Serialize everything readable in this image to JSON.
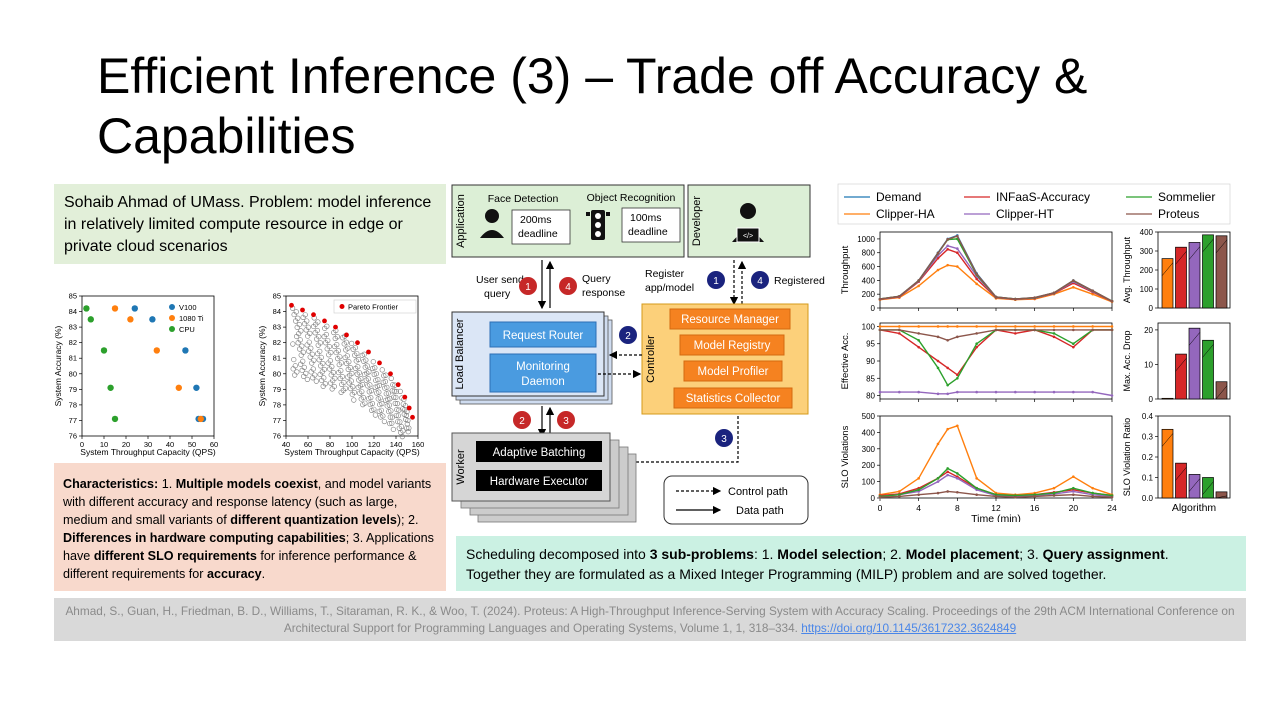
{
  "slide": {
    "title_line1": "Efficient Inference (3) – Trade off Accuracy &",
    "title_line2": "Capabilities",
    "problem": "Sohaib Ahmad of UMass. Problem: model inference in relatively limited compute resource in edge or private cloud scenarios",
    "chars": {
      "p1_bold": "Characteristics:",
      "p2": " 1. ",
      "p3_bold": "Multiple models coexist",
      "p4": ", and model variants with different accuracy and response latency (such as large, medium and small variants of ",
      "p5_bold": "different quantization levels",
      "p6": "); 2. ",
      "p7_bold": "Differences in hardware computing capabilities",
      "p8": "; 3. Applications have ",
      "p9_bold": "different SLO requirements",
      "p10": " for inference performance & different requirements for ",
      "p11_bold": "accuracy",
      "p12": "."
    },
    "sched": {
      "s1": "Scheduling decomposed into ",
      "s2_bold": "3 sub-problems",
      "s3": ": 1. ",
      "s4_bold": "Model selection",
      "s5": "; 2. ",
      "s6_bold": "Model placement",
      "s7": "; 3. ",
      "s8_bold": "Query assignment",
      "s9": ".",
      "s10": "Together they are formulated as a Mixed Integer Programming (MILP) problem and are solved together."
    },
    "citation_text": "Ahmad, S., Guan, H., Friedman, B. D., Williams, T., Sitaraman, R. K., & Woo, T. (2024). Proteus: A High-Throughput Inference-Serving System with Accuracy Scaling. Proceedings of the 29th ACM International Conference on Architectural Support for Programming Languages and Operating Systems, Volume 1, 1, 318–334. ",
    "citation_link": "https://doi.org/10.1145/3617232.3624849"
  },
  "scatter1": {
    "xlabel": "System Throughput Capacity (QPS)",
    "ylabel": "System Accuracy (%)",
    "xticks": [
      "0",
      "10",
      "20",
      "30",
      "40",
      "50",
      "60"
    ],
    "yticks": [
      "76",
      "77",
      "78",
      "79",
      "80",
      "81",
      "82",
      "83",
      "84",
      "85"
    ],
    "legend": [
      "V100",
      "1080 Ti",
      "CPU"
    ],
    "colors": [
      "#1f77b4",
      "#ff7f0e",
      "#2ca02c"
    ]
  },
  "scatter2": {
    "xlabel": "System Throughput Capacity (QPS)",
    "ylabel": "System Accuracy (%)",
    "xticks": [
      "40",
      "60",
      "80",
      "100",
      "120",
      "140",
      "160"
    ],
    "yticks": [
      "76",
      "77",
      "78",
      "79",
      "80",
      "81",
      "82",
      "83",
      "84",
      "85"
    ],
    "legend": "Pareto Frontier"
  },
  "diagram": {
    "application": "Application",
    "face": "Face Detection",
    "object": "Object Recognition",
    "d200": "200ms",
    "d100": "100ms",
    "deadline": "deadline",
    "developer": "Developer",
    "user_sends": "User sends",
    "query": "query",
    "query2": "Query",
    "response": "response",
    "register": "Register",
    "appmodel": "app/model",
    "registered": "Registered",
    "load_balancer": "Load Balancer",
    "request_router": "Request Router",
    "monitoring": "Monitoring",
    "daemon": "Daemon",
    "controller": "Controller",
    "resource_manager": "Resource Manager",
    "model_registry": "Model Registry",
    "model_profiler": "Model Profiler",
    "stats": "Statistics Collector",
    "worker": "Worker",
    "batching": "Adaptive Batching",
    "executor": "Hardware Executor",
    "control_path": "Control path",
    "data_path": "Data path",
    "n1": "1",
    "n2": "2",
    "n3": "3",
    "n4": "4"
  },
  "lines": {
    "legend": [
      "Demand",
      "Clipper-HA",
      "INFaaS-Accuracy",
      "Clipper-HT",
      "Sommelier",
      "Proteus"
    ],
    "colors": [
      "#1f77b4",
      "#ff7f0e",
      "#d62728",
      "#9467bd",
      "#2ca02c",
      "#8c564b"
    ],
    "ylabel1": "Throughput",
    "ylabel2": "Effective Acc.",
    "ylabel3": "SLO Violations",
    "xlabel": "Time (min)",
    "xticks": [
      "0",
      "4",
      "8",
      "12",
      "16",
      "20",
      "24"
    ],
    "yticks1": [
      "0",
      "200",
      "400",
      "600",
      "800",
      "1000"
    ],
    "yticks2": [
      "80",
      "85",
      "90",
      "95",
      "100"
    ],
    "yticks3": [
      "0",
      "100",
      "200",
      "300",
      "400",
      "500"
    ],
    "bar_ylabel1": "Avg. Throughput",
    "bar_ylabel2": "Max. Acc. Drop",
    "bar_ylabel3": "SLO Violation Ratio",
    "bar_xlabel": "Algorithm",
    "bar_yticks1": [
      "0",
      "100",
      "200",
      "300",
      "400"
    ],
    "bar_yticks2": [
      "0",
      "10",
      "20"
    ],
    "bar_yticks3": [
      "0.0",
      "0.1",
      "0.2",
      "0.3",
      "0.4"
    ]
  },
  "chart_data": [
    {
      "type": "scatter",
      "xlabel": "System Throughput Capacity (QPS)",
      "ylabel": "System Accuracy (%)",
      "xlim": [
        0,
        60
      ],
      "ylim": [
        76,
        85
      ],
      "series": [
        {
          "name": "V100",
          "points": [
            [
              24,
              84.2
            ],
            [
              32,
              83.5
            ],
            [
              47,
              81.5
            ],
            [
              52,
              79.1
            ],
            [
              53,
              77.1
            ],
            [
              55,
              77.1
            ]
          ]
        },
        {
          "name": "1080 Ti",
          "points": [
            [
              15,
              84.2
            ],
            [
              22,
              83.5
            ],
            [
              34,
              81.5
            ],
            [
              44,
              79.1
            ],
            [
              54,
              77.1
            ]
          ]
        },
        {
          "name": "CPU",
          "points": [
            [
              2,
              84.2
            ],
            [
              4,
              83.5
            ],
            [
              10,
              81.5
            ],
            [
              13,
              79.1
            ],
            [
              15,
              77.1
            ]
          ]
        }
      ]
    },
    {
      "type": "scatter",
      "xlabel": "System Throughput Capacity (QPS)",
      "ylabel": "System Accuracy (%)",
      "xlim": [
        40,
        160
      ],
      "ylim": [
        76,
        85
      ],
      "series": [
        {
          "name": "Pareto Frontier",
          "points": [
            [
              45,
              84.4
            ],
            [
              55,
              84.1
            ],
            [
              65,
              83.8
            ],
            [
              75,
              83.4
            ],
            [
              85,
              83.0
            ],
            [
              95,
              82.5
            ],
            [
              105,
              82.0
            ],
            [
              115,
              81.4
            ],
            [
              125,
              80.7
            ],
            [
              135,
              80.0
            ],
            [
              142,
              79.3
            ],
            [
              148,
              78.5
            ],
            [
              152,
              77.8
            ],
            [
              155,
              77.2
            ]
          ]
        }
      ]
    },
    {
      "type": "line",
      "ylabel": "Throughput",
      "xlim": [
        0,
        24
      ],
      "ylim": [
        0,
        1100
      ],
      "x": [
        0,
        2,
        4,
        6,
        7,
        8,
        10,
        12,
        14,
        16,
        18,
        20,
        22,
        24
      ],
      "series": [
        {
          "name": "Demand",
          "values": [
            130,
            170,
            400,
            800,
            1000,
            1050,
            500,
            160,
            130,
            150,
            220,
            400,
            250,
            100
          ]
        },
        {
          "name": "Clipper-HA",
          "values": [
            120,
            150,
            320,
            550,
            620,
            600,
            350,
            140,
            120,
            130,
            200,
            300,
            200,
            90
          ]
        },
        {
          "name": "INFaaS-Accuracy",
          "values": [
            125,
            160,
            380,
            720,
            850,
            800,
            420,
            150,
            125,
            140,
            210,
            360,
            230,
            95
          ]
        },
        {
          "name": "Clipper-HT",
          "values": [
            128,
            165,
            390,
            760,
            900,
            860,
            460,
            155,
            128,
            145,
            215,
            380,
            240,
            98
          ]
        },
        {
          "name": "Sommelier",
          "values": [
            130,
            170,
            395,
            790,
            990,
            1000,
            480,
            158,
            130,
            148,
            218,
            395,
            248,
            100
          ]
        },
        {
          "name": "Proteus",
          "values": [
            130,
            170,
            398,
            795,
            995,
            1040,
            490,
            160,
            130,
            150,
            220,
            398,
            250,
            100
          ]
        }
      ]
    },
    {
      "type": "line",
      "ylabel": "Effective Acc.",
      "xlim": [
        0,
        24
      ],
      "ylim": [
        79,
        101
      ],
      "x": [
        0,
        2,
        4,
        6,
        7,
        8,
        10,
        12,
        14,
        16,
        18,
        20,
        22,
        24
      ],
      "series": [
        {
          "name": "Clipper-HA",
          "values": [
            100,
            100,
            100,
            100,
            100,
            100,
            100,
            100,
            100,
            100,
            100,
            100,
            100,
            100
          ]
        },
        {
          "name": "INFaaS-Accuracy",
          "values": [
            99,
            98,
            94,
            90,
            88,
            86,
            94,
            99,
            98,
            99,
            97,
            94,
            99,
            99
          ]
        },
        {
          "name": "Clipper-HT",
          "values": [
            81,
            81,
            81,
            80.5,
            80.5,
            81,
            81,
            81,
            81,
            81,
            81,
            81,
            81,
            80
          ]
        },
        {
          "name": "Sommelier",
          "values": [
            99,
            99,
            96,
            88,
            83,
            85,
            95,
            99,
            99,
            99,
            98,
            95,
            99,
            99
          ]
        },
        {
          "name": "Proteus",
          "values": [
            99,
            99,
            98,
            97,
            96,
            97,
            98,
            99,
            99,
            99,
            99,
            99,
            99,
            99
          ]
        }
      ]
    },
    {
      "type": "line",
      "ylabel": "SLO Violations",
      "xlabel": "Time (min)",
      "xlim": [
        0,
        24
      ],
      "ylim": [
        0,
        500
      ],
      "x": [
        0,
        2,
        4,
        6,
        7,
        8,
        10,
        12,
        14,
        16,
        18,
        20,
        22,
        24
      ],
      "series": [
        {
          "name": "Clipper-HA",
          "values": [
            20,
            40,
            120,
            330,
            420,
            440,
            120,
            30,
            20,
            30,
            60,
            130,
            60,
            20
          ]
        },
        {
          "name": "INFaaS-Accuracy",
          "values": [
            15,
            25,
            60,
            120,
            160,
            130,
            60,
            20,
            15,
            20,
            35,
            50,
            30,
            15
          ]
        },
        {
          "name": "Clipper-HT",
          "values": [
            10,
            20,
            40,
            100,
            140,
            120,
            50,
            15,
            10,
            15,
            25,
            40,
            20,
            10
          ]
        },
        {
          "name": "Sommelier",
          "values": [
            10,
            20,
            50,
            120,
            180,
            150,
            60,
            20,
            15,
            20,
            30,
            60,
            30,
            15
          ]
        },
        {
          "name": "Proteus",
          "values": [
            5,
            10,
            20,
            30,
            40,
            35,
            20,
            10,
            5,
            10,
            15,
            20,
            10,
            5
          ]
        }
      ]
    },
    {
      "type": "bar",
      "ylabel": "Avg. Throughput",
      "ylim": [
        0,
        400
      ],
      "categories": [
        "Clipper-HA",
        "INFaaS-Accuracy",
        "Clipper-HT",
        "Sommelier",
        "Proteus"
      ],
      "values": [
        260,
        320,
        345,
        385,
        380
      ]
    },
    {
      "type": "bar",
      "ylabel": "Max. Acc. Drop",
      "ylim": [
        0,
        22
      ],
      "categories": [
        "Clipper-HA",
        "INFaaS-Accuracy",
        "Clipper-HT",
        "Sommelier",
        "Proteus"
      ],
      "values": [
        0.2,
        13,
        20.5,
        17,
        5
      ]
    },
    {
      "type": "bar",
      "ylabel": "SLO Violation Ratio",
      "xlabel": "Algorithm",
      "ylim": [
        0,
        0.4
      ],
      "categories": [
        "Clipper-HA",
        "INFaaS-Accuracy",
        "Clipper-HT",
        "Sommelier",
        "Proteus"
      ],
      "values": [
        0.335,
        0.17,
        0.115,
        0.1,
        0.03
      ]
    }
  ]
}
